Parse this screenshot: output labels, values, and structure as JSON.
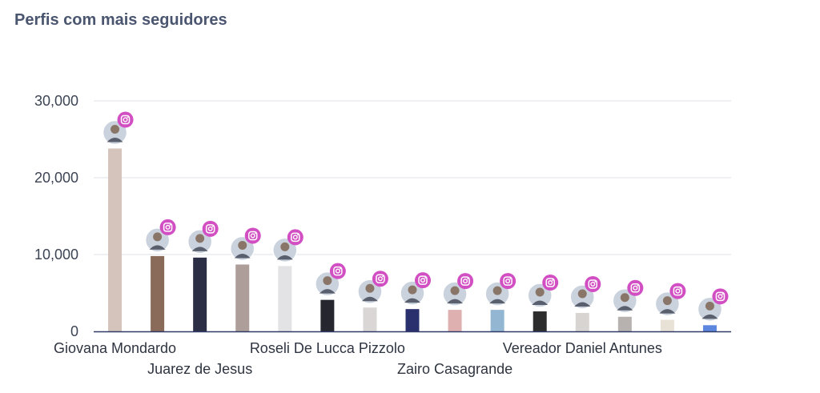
{
  "title": "Perfis com mais seguidores",
  "platform_icon": "instagram-icon",
  "colors": {
    "instagram": "#d24fc3",
    "grid": "#dde1ea",
    "axis": "#2f3a66"
  },
  "chart_data": {
    "type": "bar",
    "ylim": [
      0,
      30000
    ],
    "yticks": [
      0,
      10000,
      20000,
      30000
    ],
    "ytick_labels": [
      "0",
      "10,000",
      "20,000",
      "30,000"
    ],
    "grid": true,
    "categories": [
      "Giovana Mondardo",
      "",
      "Juarez de Jesus",
      "",
      "",
      "Roseli De Lucca Pizzolo",
      "",
      "",
      "Zairo Casagrande",
      "",
      "",
      "Vereador Daniel Antunes",
      "",
      "",
      ""
    ],
    "values": [
      23800,
      9800,
      9600,
      8700,
      8500,
      4100,
      3100,
      2900,
      2800,
      2800,
      2600,
      2400,
      1900,
      1500,
      800
    ],
    "bar_colors": [
      "#d5c4bb",
      "#8a6a58",
      "#2c2e45",
      "#ad9e99",
      "#e3e3e6",
      "#25262e",
      "#d9d6d5",
      "#2a2f6e",
      "#dfb0b0",
      "#93b6d2",
      "#2d2d2d",
      "#d8d4d2",
      "#b7b2b0",
      "#e8e1d6",
      "#5d86de"
    ]
  }
}
